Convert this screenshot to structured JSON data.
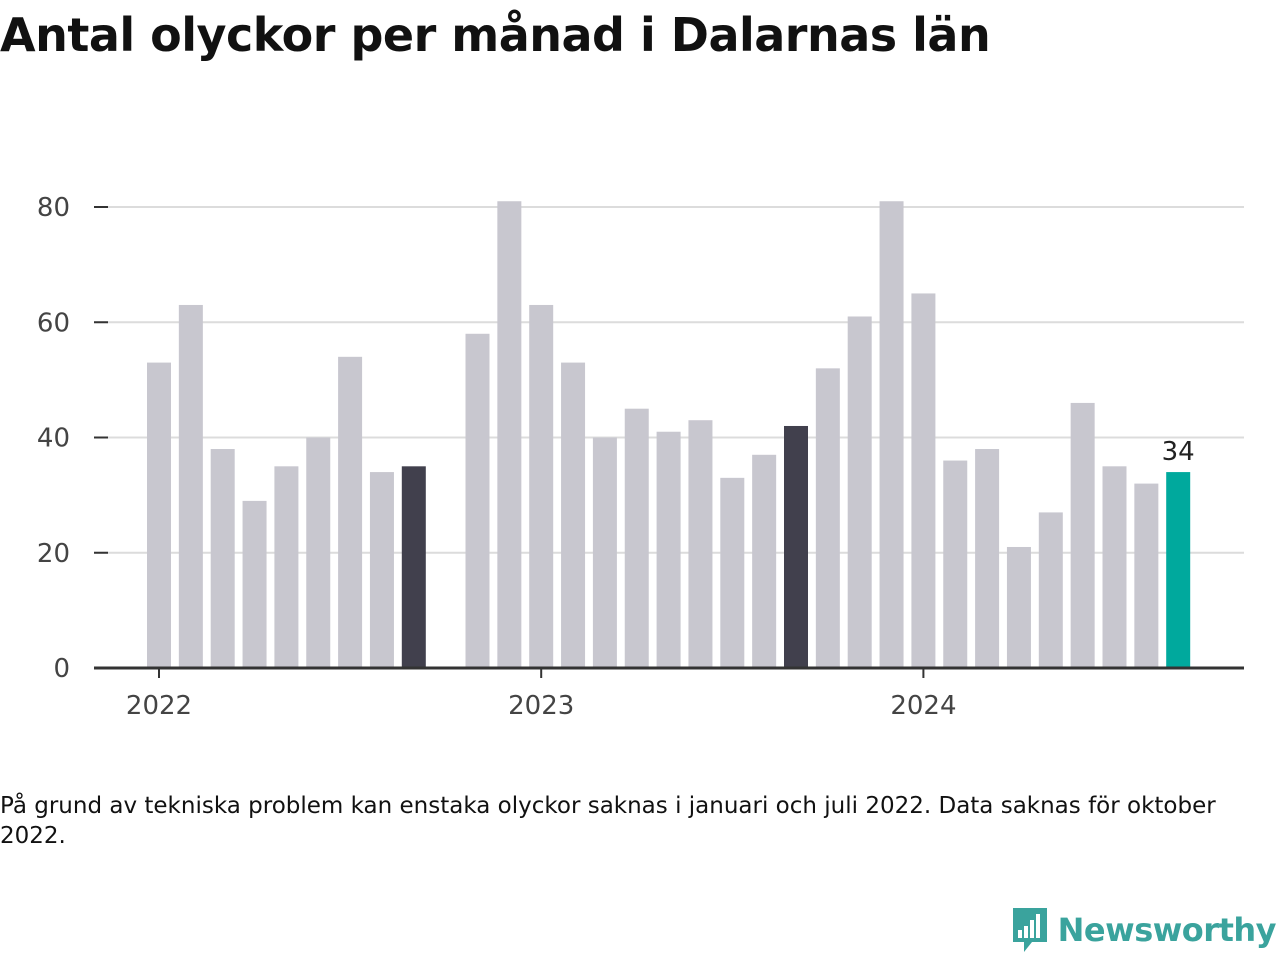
{
  "title": "Antal olyckor per månad i Dalarnas län",
  "note": "På grund av tekniska problem kan enstaka olyckor saknas i januari och juli 2022. Data saknas för oktober 2022.",
  "brand": {
    "name": "Newsworthy",
    "logo_icon": "newsworthy-chart-bubble-icon"
  },
  "colors": {
    "bar": "#c8c7cf",
    "highlight_bar": "#41404d",
    "latest_bar": "#00a99d",
    "gridline": "#dcdcdc",
    "axis": "#333333",
    "brand": "#3aa39d"
  },
  "chart_data": {
    "type": "bar",
    "title": "Antal olyckor per månad i Dalarnas län",
    "xlabel": "",
    "ylabel": "",
    "ylim": [
      0,
      80
    ],
    "yticks": [
      0,
      20,
      40,
      60,
      80
    ],
    "xtick_labels": [
      {
        "label": "2022",
        "month": "2022-01"
      },
      {
        "label": "2023",
        "month": "2023-01"
      },
      {
        "label": "2024",
        "month": "2024-01"
      }
    ],
    "months": [
      "2022-01",
      "2022-02",
      "2022-03",
      "2022-04",
      "2022-05",
      "2022-06",
      "2022-07",
      "2022-08",
      "2022-09",
      "2022-10",
      "2022-11",
      "2022-12",
      "2023-01",
      "2023-02",
      "2023-03",
      "2023-04",
      "2023-05",
      "2023-06",
      "2023-07",
      "2023-08",
      "2023-09",
      "2023-10",
      "2023-11",
      "2023-12",
      "2024-01",
      "2024-02",
      "2024-03",
      "2024-04",
      "2024-05",
      "2024-06",
      "2024-07",
      "2024-08",
      "2024-09"
    ],
    "values": [
      53,
      63,
      38,
      29,
      35,
      40,
      54,
      34,
      35,
      null,
      58,
      81,
      63,
      53,
      40,
      45,
      41,
      43,
      33,
      37,
      42,
      52,
      61,
      81,
      65,
      36,
      38,
      21,
      27,
      46,
      35,
      32,
      34
    ],
    "highlight_months": [
      "2022-09",
      "2023-09"
    ],
    "latest_month": "2024-09",
    "data_labels": [
      {
        "month": "2024-09",
        "text": "34"
      }
    ],
    "grid": true,
    "legend": "none"
  }
}
